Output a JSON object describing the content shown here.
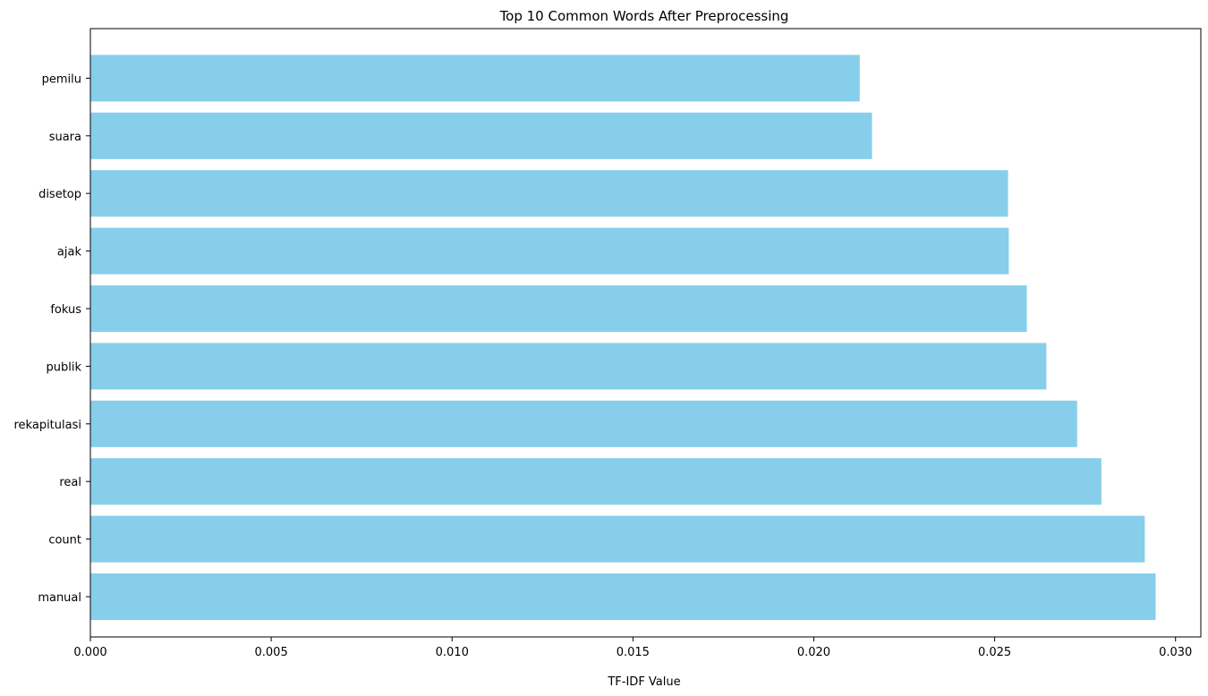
{
  "chart_data": {
    "type": "bar",
    "orientation": "horizontal",
    "title": "Top 10 Common Words After Preprocessing",
    "xlabel": "TF-IDF Value",
    "ylabel": "",
    "categories": [
      "manual",
      "count",
      "real",
      "rekapitulasi",
      "publik",
      "fokus",
      "ajak",
      "disetop",
      "suara",
      "pemilu"
    ],
    "values": [
      0.02945,
      0.02915,
      0.02795,
      0.02728,
      0.02643,
      0.02589,
      0.02539,
      0.02537,
      0.02161,
      0.02127
    ],
    "xlim": [
      0,
      0.0307
    ],
    "xticks": [
      0.0,
      0.005,
      0.01,
      0.015,
      0.02,
      0.025,
      0.03
    ],
    "xtick_labels": [
      "0.000",
      "0.005",
      "0.010",
      "0.015",
      "0.020",
      "0.025",
      "0.030"
    ],
    "bar_color": "#87ceeb",
    "grid": false,
    "legend": null
  }
}
